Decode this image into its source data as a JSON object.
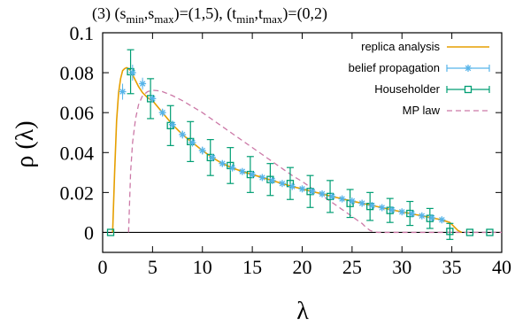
{
  "chart_data": {
    "type": "line",
    "title_parts": {
      "prefix": "(3)  (s",
      "smin": "min",
      "comma1": ",s",
      "smax": "max",
      "eq1": ")=(1,5),   (t",
      "tmin": "min",
      "comma2": ",t",
      "tmax": "max",
      "eq2": ")=(0,2)"
    },
    "xlabel": "λ",
    "ylabel": "ρ (λ)",
    "xlim": [
      0,
      40
    ],
    "ylim": [
      -0.01,
      0.1
    ],
    "x_ticks": [
      "0",
      "5",
      "10",
      "15",
      "20",
      "25",
      "30",
      "35",
      "40"
    ],
    "x_tick_values": [
      0,
      5,
      10,
      15,
      20,
      25,
      30,
      35,
      40
    ],
    "y_ticks": [
      "0",
      "0.02",
      "0.04",
      "0.06",
      "0.08",
      "0.1"
    ],
    "y_tick_values": [
      0,
      0.02,
      0.04,
      0.06,
      0.08,
      0.1
    ],
    "legend_position": "top-right",
    "colors": {
      "replica": "#e69f00",
      "bp": "#56b4e9",
      "householder": "#009e73",
      "mp": "#cc79a7",
      "axis": "#000000"
    },
    "series": [
      {
        "name": "replica analysis",
        "style": "line",
        "x": [
          1.0,
          1.2,
          1.4,
          1.6,
          1.8,
          2.0,
          2.2,
          2.4,
          2.6,
          2.8,
          3.0,
          3.3,
          3.6,
          4.0,
          4.5,
          5,
          6,
          7,
          8,
          9,
          10,
          11,
          12,
          13,
          14,
          15,
          16,
          17,
          18,
          19,
          20,
          21,
          22,
          23,
          24,
          25,
          26,
          27,
          28,
          29,
          30,
          31,
          32,
          33,
          34,
          34.8,
          35.2,
          35.6,
          36
        ],
        "y": [
          0,
          0.03,
          0.056,
          0.07,
          0.077,
          0.081,
          0.082,
          0.0825,
          0.082,
          0.081,
          0.079,
          0.076,
          0.073,
          0.07,
          0.0675,
          0.066,
          0.06,
          0.054,
          0.049,
          0.045,
          0.041,
          0.0375,
          0.0345,
          0.0323,
          0.0305,
          0.029,
          0.0275,
          0.026,
          0.0245,
          0.023,
          0.0218,
          0.0205,
          0.0193,
          0.018,
          0.0168,
          0.0157,
          0.0146,
          0.0135,
          0.0124,
          0.0113,
          0.0103,
          0.0093,
          0.0083,
          0.0073,
          0.0063,
          0.005,
          0.003,
          0.001,
          0
        ]
      },
      {
        "name": "belief propagation",
        "style": "points",
        "x": [
          2,
          3,
          4,
          5,
          6,
          7,
          8,
          9,
          10,
          11,
          12,
          13,
          14,
          15,
          16,
          17,
          18,
          19,
          20,
          21,
          22,
          23,
          24,
          25,
          26,
          27,
          28,
          29,
          30,
          31,
          32,
          33,
          34
        ],
        "y": [
          0.0705,
          0.08,
          0.0745,
          0.067,
          0.06,
          0.054,
          0.049,
          0.045,
          0.041,
          0.0375,
          0.0345,
          0.0323,
          0.0305,
          0.029,
          0.0275,
          0.026,
          0.0245,
          0.023,
          0.0218,
          0.0205,
          0.0193,
          0.018,
          0.0168,
          0.0157,
          0.0146,
          0.0135,
          0.0124,
          0.0113,
          0.0103,
          0.0093,
          0.0083,
          0.0073,
          0.0063
        ],
        "err": [
          0.004,
          0.004,
          0.003,
          0.002,
          0.002,
          0.002,
          0.002,
          0.002,
          0.002,
          0.0015,
          0.0015,
          0.0015,
          0.0015,
          0.0015,
          0.0015,
          0.0015,
          0.0015,
          0.0015,
          0.0015,
          0.0015,
          0.0015,
          0.0015,
          0.0015,
          0.0015,
          0.0015,
          0.0015,
          0.0015,
          0.0015,
          0.0015,
          0.0015,
          0.0015,
          0.0015,
          0.0015
        ]
      },
      {
        "name": "Householder",
        "style": "points-errorbars",
        "x": [
          0.8,
          2.8,
          4.8,
          6.8,
          8.8,
          10.8,
          12.8,
          14.8,
          16.8,
          18.8,
          20.8,
          22.8,
          24.8,
          26.8,
          28.8,
          30.8,
          32.8,
          34.8,
          36.8,
          38.8
        ],
        "y": [
          0,
          0.0805,
          0.067,
          0.0535,
          0.0455,
          0.0375,
          0.0335,
          0.029,
          0.0265,
          0.0245,
          0.0205,
          0.018,
          0.0145,
          0.013,
          0.011,
          0.0095,
          0.007,
          0.0005,
          0,
          0
        ],
        "err": [
          0,
          0.011,
          0.01,
          0.01,
          0.01,
          0.009,
          0.009,
          0.009,
          0.008,
          0.008,
          0.008,
          0.008,
          0.007,
          0.007,
          0.006,
          0.006,
          0.005,
          0.004,
          0,
          0
        ]
      },
      {
        "name": "MP law",
        "style": "dashed",
        "x": [
          2.6,
          2.8,
          3.0,
          3.3,
          3.6,
          4.0,
          4.5,
          5,
          5.5,
          6,
          7,
          8,
          9,
          10,
          11,
          12,
          13,
          14,
          15,
          16,
          17,
          18,
          19,
          20,
          21,
          22,
          23,
          24,
          25,
          25.5,
          26,
          26.4,
          26.8,
          27.2,
          27.6,
          28,
          30,
          35,
          40
        ],
        "y": [
          0,
          0.03,
          0.045,
          0.057,
          0.064,
          0.0685,
          0.0705,
          0.0712,
          0.071,
          0.0705,
          0.0685,
          0.066,
          0.063,
          0.06,
          0.0565,
          0.053,
          0.0495,
          0.046,
          0.0425,
          0.039,
          0.0355,
          0.032,
          0.0285,
          0.0255,
          0.022,
          0.0185,
          0.015,
          0.0115,
          0.008,
          0.0062,
          0.0045,
          0.0025,
          0.001,
          0.0002,
          0,
          0,
          0,
          0,
          0
        ]
      }
    ]
  }
}
